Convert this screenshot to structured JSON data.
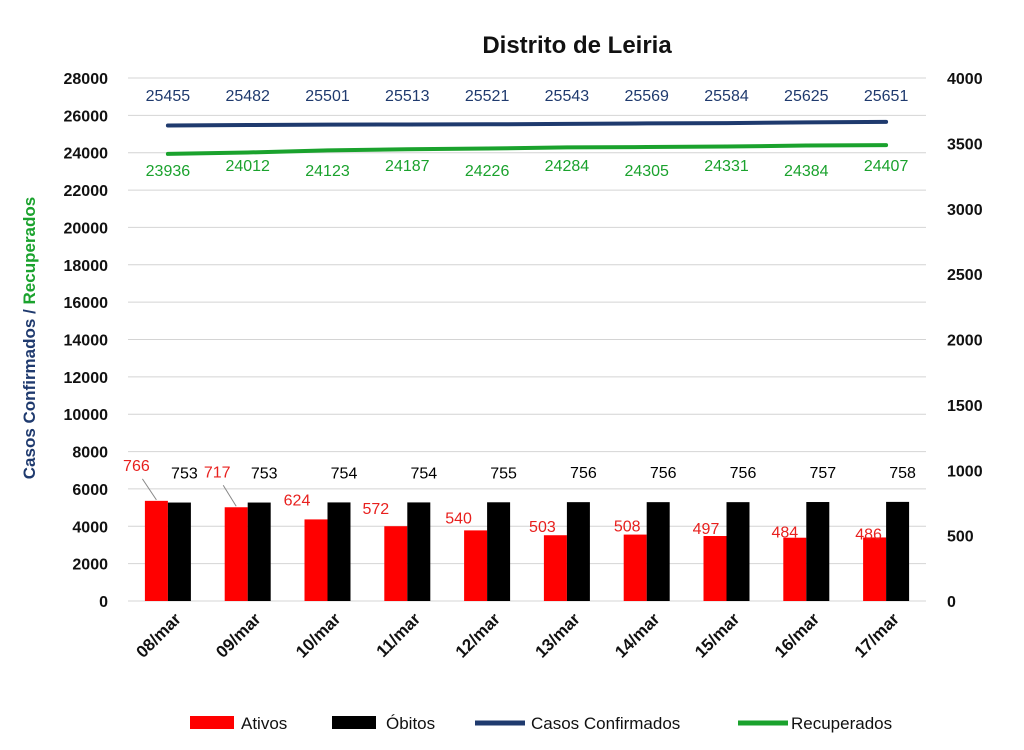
{
  "chart_data": {
    "type": "bar",
    "title": "Distrito de Leiria",
    "categories": [
      "08/mar",
      "09/mar",
      "10/mar",
      "11/mar",
      "12/mar",
      "13/mar",
      "14/mar",
      "15/mar",
      "16/mar",
      "17/mar"
    ],
    "ylabel_part1": "Casos Confirmados",
    "ylabel_sep": " / ",
    "ylabel_part2": "Recuperados",
    "ylim_left": [
      0,
      28000
    ],
    "yticks_left": [
      0,
      2000,
      4000,
      6000,
      8000,
      10000,
      12000,
      14000,
      16000,
      18000,
      20000,
      22000,
      24000,
      26000,
      28000
    ],
    "ylim_right": [
      0,
      4000
    ],
    "yticks_right": [
      0,
      500,
      1000,
      1500,
      2000,
      2500,
      3000,
      3500,
      4000
    ],
    "grid": true,
    "legend_position": "bottom",
    "series": [
      {
        "name": "Ativos",
        "type": "bar",
        "axis": "right",
        "color": "#ff0000",
        "label_color": "#e8201e",
        "values": [
          766,
          717,
          624,
          572,
          540,
          503,
          508,
          497,
          484,
          486
        ]
      },
      {
        "name": "Óbitos",
        "type": "bar",
        "axis": "right",
        "color": "#000000",
        "label_color": "#000000",
        "values": [
          753,
          753,
          754,
          754,
          755,
          756,
          756,
          756,
          757,
          758
        ]
      },
      {
        "name": "Casos Confirmados",
        "type": "line",
        "axis": "left",
        "color": "#1f3a6e",
        "label_color": "#1f3a6e",
        "values": [
          25455,
          25482,
          25501,
          25513,
          25521,
          25543,
          25569,
          25584,
          25625,
          25651
        ]
      },
      {
        "name": "Recuperados",
        "type": "line",
        "axis": "left",
        "color": "#1aa22d",
        "label_color": "#1aa22d",
        "values": [
          23936,
          24012,
          24123,
          24187,
          24226,
          24284,
          24305,
          24331,
          24384,
          24407
        ]
      }
    ]
  }
}
